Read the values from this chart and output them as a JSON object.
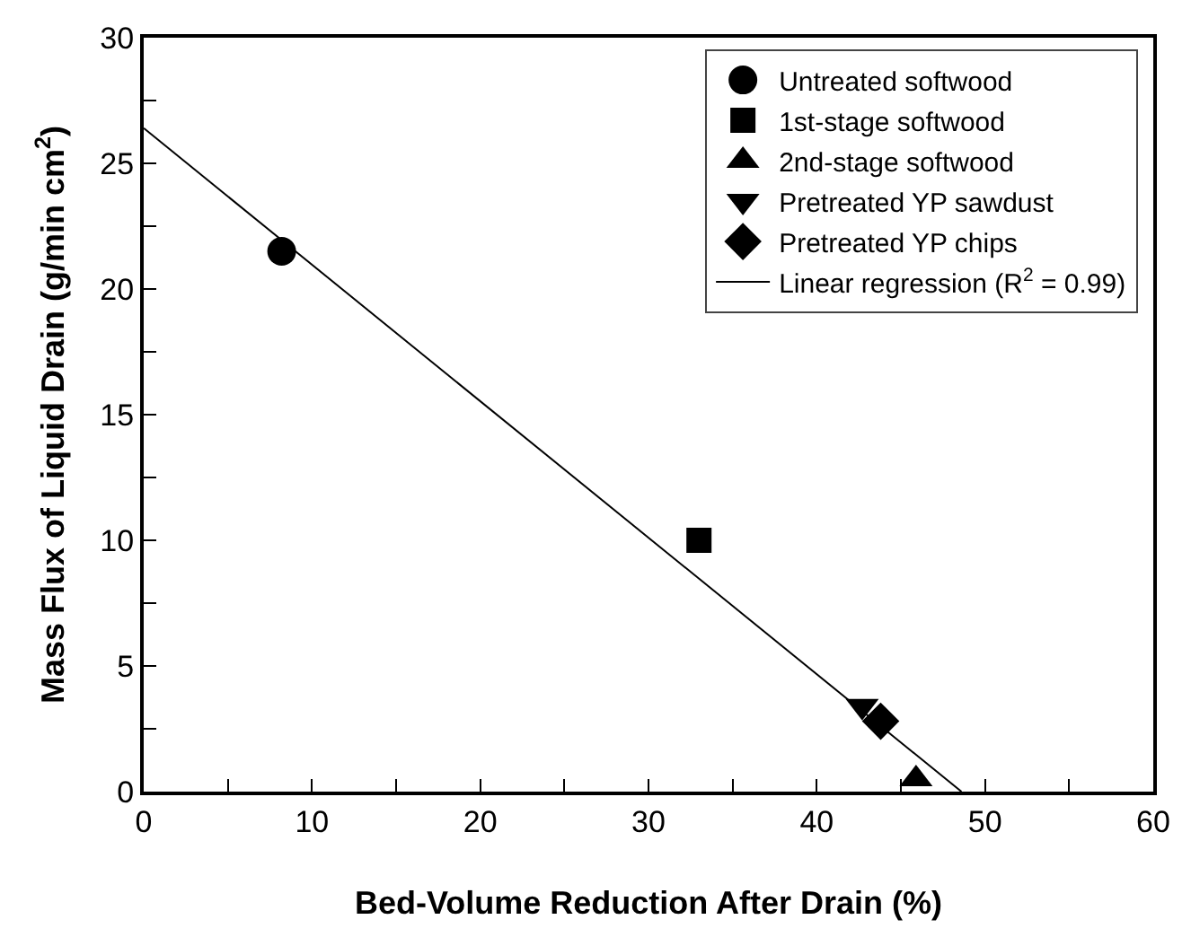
{
  "chart_data": {
    "type": "scatter",
    "xlabel": "Bed-Volume Reduction After Drain (%)",
    "ylabel": "Mass Flux of Liquid Drain (g/min cm$^{2}$)",
    "xlim": [
      0,
      60
    ],
    "ylim": [
      0,
      30
    ],
    "xticks": [
      0,
      {
        "value": 5,
        "label": null
      },
      10,
      {
        "value": 15,
        "label": null
      },
      20,
      {
        "value": 25,
        "label": null
      },
      30,
      {
        "value": 35,
        "label": null
      },
      40,
      {
        "value": 45,
        "label": null
      },
      50,
      {
        "value": 55,
        "label": null
      },
      60
    ],
    "yticks": [
      0,
      {
        "value": 2.5,
        "label": null
      },
      5,
      {
        "value": 7.5,
        "label": null
      },
      10,
      {
        "value": 12.5,
        "label": null
      },
      15,
      {
        "value": 17.5,
        "label": null
      },
      20,
      {
        "value": 22.5,
        "label": null
      },
      25,
      {
        "value": 27.5,
        "label": null
      },
      30
    ],
    "legend": "top right",
    "series": [
      {
        "name": "Untreated softwood",
        "color": "#000000",
        "marker": "circle",
        "x": [
          8.2
        ],
        "values": [
          21.5
        ]
      },
      {
        "name": "1st-stage softwood",
        "color": "#000000",
        "marker": "square",
        "x": [
          33.0
        ],
        "values": [
          10.0
        ]
      },
      {
        "name": "2nd-stage softwood",
        "color": "#000000",
        "marker": "triangle",
        "x": [
          45.9
        ],
        "values": [
          0.5
        ]
      },
      {
        "name": "Pretreated YP sawdust",
        "color": "#000000",
        "marker": "triangle-down",
        "x": [
          42.7
        ],
        "values": [
          3.4
        ]
      },
      {
        "name": "Pretreated YP chips",
        "color": "#000000",
        "marker": "diamond",
        "x": [
          43.8
        ],
        "values": [
          2.8
        ]
      },
      {
        "name": "Linear regression (R$^{2}$ = 0.99)",
        "type": "line",
        "color": "#000000",
        "marker": "none",
        "line_style": "solid",
        "x": [
          0,
          48.6
        ],
        "values": [
          26.4,
          0
        ]
      }
    ]
  }
}
